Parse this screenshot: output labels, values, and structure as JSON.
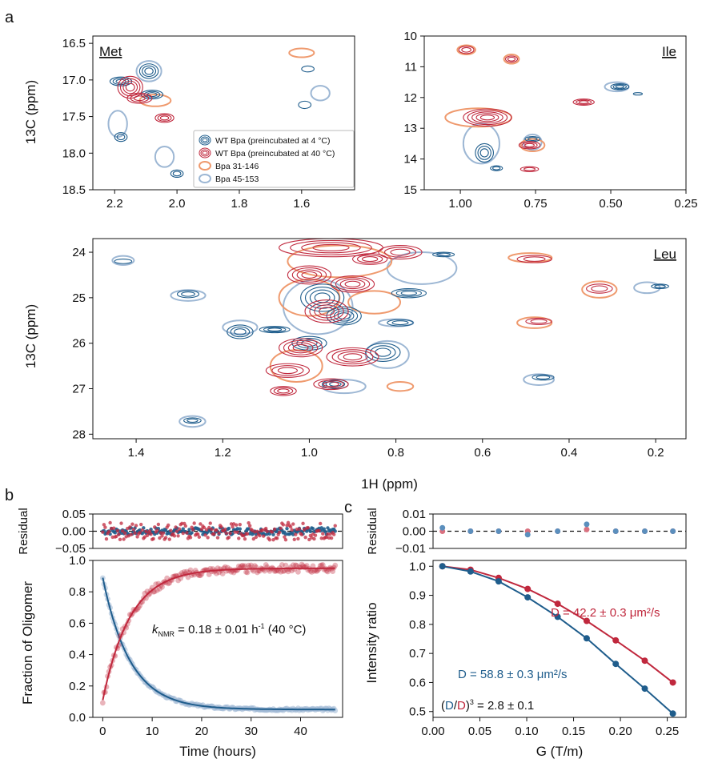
{
  "panel_letters": {
    "a": "a",
    "b": "b",
    "c": "c"
  },
  "colors": {
    "wt4": "#1f5d8c",
    "wt40": "#c0283d",
    "bpa31": "#ef9a6e",
    "bpa45": "#9db7d4"
  },
  "chart_data": [
    {
      "id": "met",
      "type": "contour",
      "panel_label": "Met",
      "ylabel": "13C (ppm)",
      "xlim": [
        2.27,
        1.43
      ],
      "ylim": [
        18.5,
        16.4
      ],
      "xticks": [
        "2.2",
        "2.0",
        "1.8",
        "1.6"
      ],
      "xtick_values": [
        2.2,
        2.0,
        1.8,
        1.6
      ],
      "yticks": [
        "16.5",
        "17.0",
        "17.5",
        "18.0",
        "18.5"
      ],
      "ytick_values": [
        16.5,
        17.0,
        17.5,
        18.0,
        18.5
      ],
      "legend": [
        {
          "label": "WT Bpa (preincubated at 4 °C)",
          "key": "wt4"
        },
        {
          "label": "WT Bpa (preincubated at 40 °C)",
          "key": "wt40"
        },
        {
          "label": "Bpa 31-146",
          "key": "bpa31"
        },
        {
          "label": "Bpa 45-153",
          "key": "bpa45"
        }
      ],
      "peaks": [
        {
          "s": "wt4",
          "x": 2.18,
          "y": 17.02,
          "w": 0.035,
          "h": 0.06,
          "n": 3
        },
        {
          "s": "wt4",
          "x": 2.09,
          "y": 16.88,
          "w": 0.03,
          "h": 0.1,
          "n": 3
        },
        {
          "s": "wt4",
          "x": 2.08,
          "y": 17.2,
          "w": 0.035,
          "h": 0.06,
          "n": 3
        },
        {
          "s": "wt4",
          "x": 2.18,
          "y": 17.78,
          "w": 0.02,
          "h": 0.06,
          "n": 2
        },
        {
          "s": "wt4",
          "x": 2.0,
          "y": 18.28,
          "w": 0.02,
          "h": 0.05,
          "n": 2
        },
        {
          "s": "wt4",
          "x": 1.59,
          "y": 17.34,
          "w": 0.02,
          "h": 0.05,
          "n": 1
        },
        {
          "s": "wt4",
          "x": 1.58,
          "y": 16.85,
          "w": 0.02,
          "h": 0.04,
          "n": 1
        },
        {
          "s": "wt40",
          "x": 2.15,
          "y": 17.1,
          "w": 0.04,
          "h": 0.15,
          "n": 4
        },
        {
          "s": "wt40",
          "x": 2.12,
          "y": 17.25,
          "w": 0.04,
          "h": 0.07,
          "n": 3
        },
        {
          "s": "wt40",
          "x": 2.04,
          "y": 17.52,
          "w": 0.03,
          "h": 0.06,
          "n": 3
        },
        {
          "s": "bpa31",
          "x": 2.07,
          "y": 17.28,
          "w": 0.05,
          "h": 0.08,
          "n": 1
        },
        {
          "s": "bpa31",
          "x": 1.6,
          "y": 16.63,
          "w": 0.04,
          "h": 0.06,
          "n": 1
        },
        {
          "s": "bpa45",
          "x": 2.09,
          "y": 16.88,
          "w": 0.04,
          "h": 0.14,
          "n": 1
        },
        {
          "s": "bpa45",
          "x": 2.19,
          "y": 17.6,
          "w": 0.03,
          "h": 0.18,
          "n": 1
        },
        {
          "s": "bpa45",
          "x": 2.04,
          "y": 18.05,
          "w": 0.03,
          "h": 0.14,
          "n": 1
        },
        {
          "s": "bpa45",
          "x": 1.54,
          "y": 17.18,
          "w": 0.03,
          "h": 0.1,
          "n": 1
        }
      ]
    },
    {
      "id": "ile",
      "type": "contour",
      "panel_label": "Ile",
      "ylabel": "",
      "xlim": [
        1.12,
        0.25
      ],
      "ylim": [
        15,
        10
      ],
      "xticks": [
        "1.00",
        "0.75",
        "0.50",
        "0.25"
      ],
      "xtick_values": [
        1.0,
        0.75,
        0.5,
        0.25
      ],
      "yticks": [
        "10",
        "11",
        "12",
        "13",
        "14",
        "15"
      ],
      "ytick_values": [
        10,
        11,
        12,
        13,
        14,
        15
      ],
      "peaks": [
        {
          "s": "wt40",
          "x": 0.91,
          "y": 12.65,
          "w": 0.08,
          "h": 0.28,
          "n": 5
        },
        {
          "s": "wt40",
          "x": 0.98,
          "y": 10.45,
          "w": 0.025,
          "h": 0.12,
          "n": 2
        },
        {
          "s": "wt40",
          "x": 0.83,
          "y": 10.75,
          "w": 0.02,
          "h": 0.1,
          "n": 2
        },
        {
          "s": "wt40",
          "x": 0.77,
          "y": 13.55,
          "w": 0.035,
          "h": 0.12,
          "n": 3
        },
        {
          "s": "wt40",
          "x": 0.77,
          "y": 14.33,
          "w": 0.03,
          "h": 0.08,
          "n": 2
        },
        {
          "s": "wt40",
          "x": 0.59,
          "y": 12.15,
          "w": 0.035,
          "h": 0.1,
          "n": 3
        },
        {
          "s": "wt4",
          "x": 0.92,
          "y": 13.8,
          "w": 0.03,
          "h": 0.3,
          "n": 3
        },
        {
          "s": "wt4",
          "x": 0.88,
          "y": 14.3,
          "w": 0.02,
          "h": 0.08,
          "n": 2
        },
        {
          "s": "wt4",
          "x": 0.76,
          "y": 13.35,
          "w": 0.025,
          "h": 0.08,
          "n": 2
        },
        {
          "s": "wt4",
          "x": 0.47,
          "y": 11.65,
          "w": 0.03,
          "h": 0.1,
          "n": 3
        },
        {
          "s": "wt4",
          "x": 0.41,
          "y": 11.88,
          "w": 0.015,
          "h": 0.04,
          "n": 1
        },
        {
          "s": "bpa31",
          "x": 0.94,
          "y": 12.65,
          "w": 0.11,
          "h": 0.3,
          "n": 1
        },
        {
          "s": "bpa31",
          "x": 0.98,
          "y": 10.45,
          "w": 0.03,
          "h": 0.15,
          "n": 1
        },
        {
          "s": "bpa31",
          "x": 0.83,
          "y": 10.75,
          "w": 0.025,
          "h": 0.15,
          "n": 1
        },
        {
          "s": "bpa31",
          "x": 0.76,
          "y": 13.55,
          "w": 0.04,
          "h": 0.2,
          "n": 1
        },
        {
          "s": "bpa45",
          "x": 0.93,
          "y": 13.5,
          "w": 0.06,
          "h": 0.65,
          "n": 1
        },
        {
          "s": "bpa45",
          "x": 0.76,
          "y": 13.45,
          "w": 0.03,
          "h": 0.25,
          "n": 1
        },
        {
          "s": "bpa45",
          "x": 0.48,
          "y": 11.65,
          "w": 0.04,
          "h": 0.15,
          "n": 1
        }
      ]
    },
    {
      "id": "leu",
      "type": "contour",
      "panel_label": "Leu",
      "xlabel": "1H (ppm)",
      "ylabel": "13C (ppm)",
      "xlim": [
        1.5,
        0.13
      ],
      "ylim": [
        28.1,
        23.7
      ],
      "xticks": [
        "1.4",
        "1.2",
        "1.0",
        "0.8",
        "0.6",
        "0.4",
        "0.2"
      ],
      "xtick_values": [
        1.4,
        1.2,
        1.0,
        0.8,
        0.6,
        0.4,
        0.2
      ],
      "yticks": [
        "24",
        "25",
        "26",
        "27",
        "28"
      ],
      "ytick_values": [
        24,
        25,
        26,
        27,
        28
      ],
      "peaks": [
        {
          "s": "wt40",
          "x": 0.95,
          "y": 23.9,
          "w": 0.12,
          "h": 0.2,
          "n": 4
        },
        {
          "s": "wt40",
          "x": 1.0,
          "y": 24.5,
          "w": 0.05,
          "h": 0.2,
          "n": 4
        },
        {
          "s": "wt40",
          "x": 0.9,
          "y": 24.7,
          "w": 0.05,
          "h": 0.18,
          "n": 4
        },
        {
          "s": "wt40",
          "x": 0.96,
          "y": 25.3,
          "w": 0.05,
          "h": 0.25,
          "n": 4
        },
        {
          "s": "wt40",
          "x": 1.02,
          "y": 26.1,
          "w": 0.05,
          "h": 0.2,
          "n": 4
        },
        {
          "s": "wt40",
          "x": 0.9,
          "y": 26.3,
          "w": 0.06,
          "h": 0.2,
          "n": 4
        },
        {
          "s": "wt40",
          "x": 1.05,
          "y": 26.6,
          "w": 0.05,
          "h": 0.15,
          "n": 3
        },
        {
          "s": "wt40",
          "x": 1.06,
          "y": 27.05,
          "w": 0.03,
          "h": 0.1,
          "n": 3
        },
        {
          "s": "wt40",
          "x": 0.95,
          "y": 26.9,
          "w": 0.04,
          "h": 0.12,
          "n": 3
        },
        {
          "s": "wt40",
          "x": 0.86,
          "y": 24.15,
          "w": 0.04,
          "h": 0.12,
          "n": 3
        },
        {
          "s": "wt40",
          "x": 0.33,
          "y": 24.8,
          "w": 0.03,
          "h": 0.1,
          "n": 2
        },
        {
          "s": "wt40",
          "x": 0.47,
          "y": 25.52,
          "w": 0.03,
          "h": 0.07,
          "n": 2
        },
        {
          "s": "wt40",
          "x": 0.48,
          "y": 24.15,
          "w": 0.04,
          "h": 0.08,
          "n": 2
        },
        {
          "s": "wt40",
          "x": 0.79,
          "y": 24.0,
          "w": 0.05,
          "h": 0.15,
          "n": 3
        },
        {
          "s": "wt4",
          "x": 0.97,
          "y": 25.0,
          "w": 0.05,
          "h": 0.3,
          "n": 4
        },
        {
          "s": "wt4",
          "x": 0.92,
          "y": 25.4,
          "w": 0.04,
          "h": 0.2,
          "n": 4
        },
        {
          "s": "wt4",
          "x": 1.08,
          "y": 25.7,
          "w": 0.035,
          "h": 0.07,
          "n": 3
        },
        {
          "s": "wt4",
          "x": 1.16,
          "y": 25.75,
          "w": 0.03,
          "h": 0.15,
          "n": 3
        },
        {
          "s": "wt4",
          "x": 1.28,
          "y": 24.92,
          "w": 0.025,
          "h": 0.08,
          "n": 2
        },
        {
          "s": "wt4",
          "x": 1.0,
          "y": 26.0,
          "w": 0.04,
          "h": 0.15,
          "n": 3
        },
        {
          "s": "wt4",
          "x": 0.83,
          "y": 26.2,
          "w": 0.04,
          "h": 0.2,
          "n": 3
        },
        {
          "s": "wt4",
          "x": 0.79,
          "y": 25.55,
          "w": 0.03,
          "h": 0.07,
          "n": 2
        },
        {
          "s": "wt4",
          "x": 0.77,
          "y": 24.9,
          "w": 0.04,
          "h": 0.1,
          "n": 3
        },
        {
          "s": "wt4",
          "x": 0.69,
          "y": 24.05,
          "w": 0.025,
          "h": 0.05,
          "n": 2
        },
        {
          "s": "wt4",
          "x": 1.27,
          "y": 27.7,
          "w": 0.02,
          "h": 0.06,
          "n": 2
        },
        {
          "s": "wt4",
          "x": 0.46,
          "y": 26.75,
          "w": 0.025,
          "h": 0.06,
          "n": 2
        },
        {
          "s": "wt4",
          "x": 0.19,
          "y": 24.75,
          "w": 0.02,
          "h": 0.05,
          "n": 2
        },
        {
          "s": "wt4",
          "x": 0.94,
          "y": 26.9,
          "w": 0.03,
          "h": 0.1,
          "n": 3
        },
        {
          "s": "wt4",
          "x": 1.43,
          "y": 24.2,
          "w": 0.02,
          "h": 0.05,
          "n": 1
        },
        {
          "s": "bpa31",
          "x": 0.93,
          "y": 24.2,
          "w": 0.12,
          "h": 0.35,
          "n": 1
        },
        {
          "s": "bpa31",
          "x": 1.0,
          "y": 25.0,
          "w": 0.07,
          "h": 0.4,
          "n": 1
        },
        {
          "s": "bpa31",
          "x": 0.85,
          "y": 25.1,
          "w": 0.06,
          "h": 0.25,
          "n": 1
        },
        {
          "s": "bpa31",
          "x": 0.49,
          "y": 24.12,
          "w": 0.05,
          "h": 0.1,
          "n": 1
        },
        {
          "s": "bpa31",
          "x": 0.33,
          "y": 24.82,
          "w": 0.04,
          "h": 0.18,
          "n": 1
        },
        {
          "s": "bpa31",
          "x": 0.48,
          "y": 25.55,
          "w": 0.04,
          "h": 0.12,
          "n": 1
        },
        {
          "s": "bpa31",
          "x": 0.79,
          "y": 26.95,
          "w": 0.03,
          "h": 0.1,
          "n": 1
        },
        {
          "s": "bpa31",
          "x": 1.03,
          "y": 26.5,
          "w": 0.06,
          "h": 0.35,
          "n": 1
        },
        {
          "s": "bpa45",
          "x": 0.98,
          "y": 25.2,
          "w": 0.08,
          "h": 0.6,
          "n": 1
        },
        {
          "s": "bpa45",
          "x": 0.74,
          "y": 24.35,
          "w": 0.08,
          "h": 0.35,
          "n": 1
        },
        {
          "s": "bpa45",
          "x": 0.8,
          "y": 25.55,
          "w": 0.04,
          "h": 0.08,
          "n": 1
        },
        {
          "s": "bpa45",
          "x": 1.28,
          "y": 24.95,
          "w": 0.04,
          "h": 0.12,
          "n": 1
        },
        {
          "s": "bpa45",
          "x": 1.16,
          "y": 25.65,
          "w": 0.04,
          "h": 0.15,
          "n": 1
        },
        {
          "s": "bpa45",
          "x": 0.82,
          "y": 26.25,
          "w": 0.05,
          "h": 0.3,
          "n": 1
        },
        {
          "s": "bpa45",
          "x": 0.47,
          "y": 26.8,
          "w": 0.035,
          "h": 0.12,
          "n": 1
        },
        {
          "s": "bpa45",
          "x": 1.27,
          "y": 27.72,
          "w": 0.03,
          "h": 0.12,
          "n": 1
        },
        {
          "s": "bpa45",
          "x": 0.22,
          "y": 24.78,
          "w": 0.03,
          "h": 0.12,
          "n": 1
        },
        {
          "s": "bpa45",
          "x": 1.43,
          "y": 24.18,
          "w": 0.025,
          "h": 0.1,
          "n": 1
        },
        {
          "s": "bpa45",
          "x": 0.92,
          "y": 26.95,
          "w": 0.05,
          "h": 0.15,
          "n": 1
        }
      ]
    },
    {
      "id": "kinetics",
      "type": "scatter",
      "xlabel": "Time (hours)",
      "ylabel": "Fraction of Oligomer",
      "residual_ylabel": "Residual",
      "xlim": [
        -2.0,
        48.5
      ],
      "ylim": [
        0.0,
        1.0
      ],
      "xticks": [
        "0",
        "10",
        "20",
        "30",
        "40"
      ],
      "xtick_values": [
        0,
        10,
        20,
        30,
        40
      ],
      "yticks": [
        "0.0",
        "0.2",
        "0.4",
        "0.6",
        "0.8",
        "1.0"
      ],
      "ytick_values": [
        0.0,
        0.2,
        0.4,
        0.6,
        0.8,
        1.0
      ],
      "residual_ylim": [
        -0.05,
        0.05
      ],
      "residual_yticks": [
        "0.05",
        "0.00",
        "−0.05"
      ],
      "residual_ytick_values": [
        0.05,
        0.0,
        -0.05
      ],
      "annotation": {
        "k": "k",
        "sub": "NMR",
        "rest": " = 0.18 ± 0.01 h",
        "sup": "-1",
        "tail": " (40 °C)"
      },
      "series": [
        {
          "key": "wt4",
          "name": "decay",
          "model": "decay",
          "a": 0.84,
          "k": 0.18,
          "c": 0.05,
          "t_max": 47
        },
        {
          "key": "wt40",
          "name": "growth",
          "model": "growth",
          "a": 0.84,
          "k": 0.18,
          "c": 0.11,
          "t_max": 47
        }
      ]
    },
    {
      "id": "diffusion",
      "type": "line",
      "xlabel": "G (T/m)",
      "ylabel": "Intensity ratio",
      "residual_ylabel": "Residual",
      "xlim": [
        0.0,
        0.27
      ],
      "ylim": [
        0.48,
        1.02
      ],
      "xticks": [
        "0.00",
        "0.05",
        "0.10",
        "0.15",
        "0.20",
        "0.25"
      ],
      "xtick_values": [
        0.0,
        0.05,
        0.1,
        0.15,
        0.2,
        0.25
      ],
      "yticks": [
        "0.5",
        "0.6",
        "0.7",
        "0.8",
        "0.9",
        "1.0"
      ],
      "ytick_values": [
        0.5,
        0.6,
        0.7,
        0.8,
        0.9,
        1.0
      ],
      "residual_ylim": [
        -0.01,
        0.01
      ],
      "residual_yticks": [
        "0.01",
        "0.00",
        "−0.01"
      ],
      "residual_ytick_values": [
        0.01,
        0.0,
        -0.01
      ],
      "x": [
        0.01,
        0.04,
        0.07,
        0.101,
        0.133,
        0.164,
        0.195,
        0.226,
        0.256
      ],
      "series": [
        {
          "key": "wt40",
          "label": "D = 42.2 ± 0.3 μm²/s",
          "y": [
            1.0,
            0.988,
            0.96,
            0.922,
            0.871,
            0.812,
            0.745,
            0.675,
            0.6
          ],
          "residuals": [
            0.0,
            0.0,
            0.0,
            0.0,
            0.0,
            0.001,
            0.0,
            0.0,
            0.0
          ]
        },
        {
          "key": "wt4",
          "label": "D = 58.8 ± 0.3 μm²/s",
          "y": [
            1.0,
            0.982,
            0.948,
            0.893,
            0.826,
            0.752,
            0.664,
            0.579,
            0.493
          ],
          "residuals": [
            0.002,
            0.0,
            0.0,
            -0.002,
            0.0,
            0.004,
            0.0,
            0.0,
            0.0
          ]
        }
      ],
      "ratio_label": {
        "open": "(",
        "d1": "D",
        "slash": "/",
        "d2": "D",
        "close": ")",
        "sup": "3",
        "rest": " = 2.8 ± 0.1"
      }
    }
  ]
}
